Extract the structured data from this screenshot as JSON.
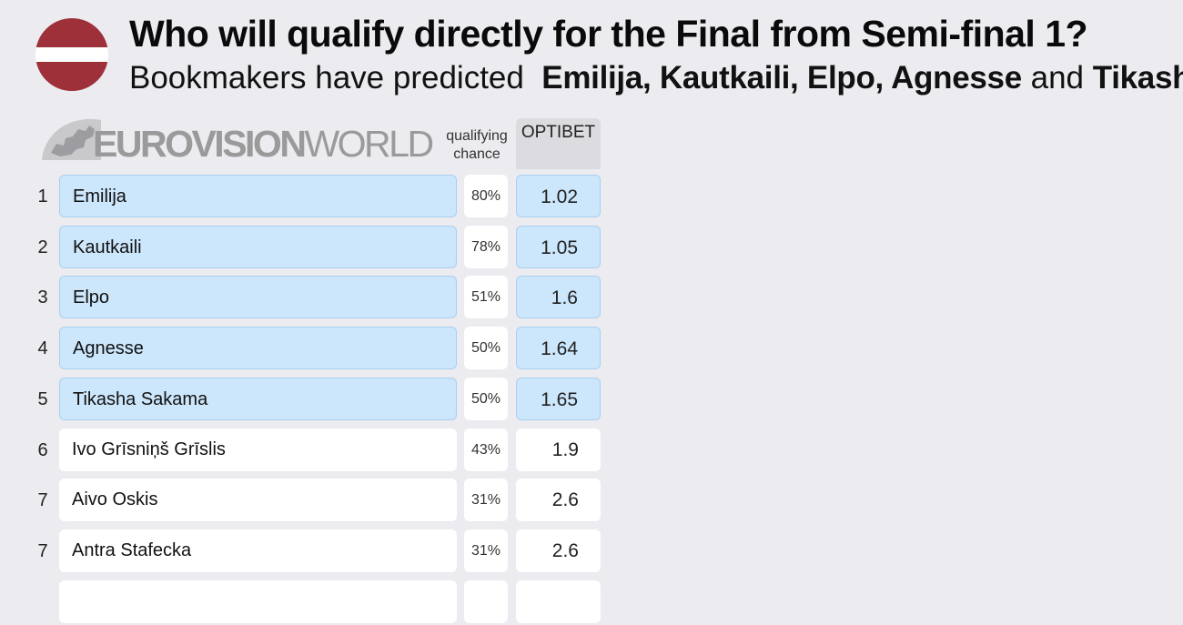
{
  "header": {
    "title": "Who will qualify directly for the Final from Semi-final 1?",
    "subtitle_prefix": "Bookmakers have predicted",
    "subtitle_names": "Emilija, Kautkaili, Elpo, Agnesse",
    "subtitle_and": "and",
    "subtitle_last": "Tikasha Sakama"
  },
  "flag": {
    "name": "latvia-flag",
    "colors": {
      "carmine": "#9e3039",
      "white": "#ffffff"
    }
  },
  "logo": {
    "text_bold": "EUROVISION",
    "text_light": "WORLD"
  },
  "columns": {
    "chance_line1": "qualifying",
    "chance_line2": "chance",
    "bookmaker": "OPTIBET"
  },
  "colors": {
    "qualify_fill": "#cce6fb",
    "qualify_border": "#a9d0f0",
    "background": "#ebebf0"
  },
  "chart_data": {
    "type": "table",
    "columns": [
      "rank",
      "name",
      "qualifying chance",
      "OPTIBET"
    ],
    "rows": [
      {
        "rank": "1",
        "name": "Emilija",
        "chance": "80%",
        "odds": "1.02",
        "qualify": true
      },
      {
        "rank": "2",
        "name": "Kautkaili",
        "chance": "78%",
        "odds": "1.05",
        "qualify": true
      },
      {
        "rank": "3",
        "name": "Elpo",
        "chance": "51%",
        "odds": "1.6",
        "qualify": true
      },
      {
        "rank": "4",
        "name": "Agnesse",
        "chance": "50%",
        "odds": "1.64",
        "qualify": true
      },
      {
        "rank": "5",
        "name": "Tikasha Sakama",
        "chance": "50%",
        "odds": "1.65",
        "qualify": true
      },
      {
        "rank": "6",
        "name": "Ivo Grīsniņš Grīslis",
        "chance": "43%",
        "odds": "1.9",
        "qualify": false
      },
      {
        "rank": "7",
        "name": "Aivo Oskis",
        "chance": "31%",
        "odds": "2.6",
        "qualify": false
      },
      {
        "rank": "7",
        "name": "Antra Stafecka",
        "chance": "31%",
        "odds": "2.6",
        "qualify": false
      },
      {
        "rank": "",
        "name": "",
        "chance": "",
        "odds": "",
        "qualify": false
      }
    ]
  }
}
